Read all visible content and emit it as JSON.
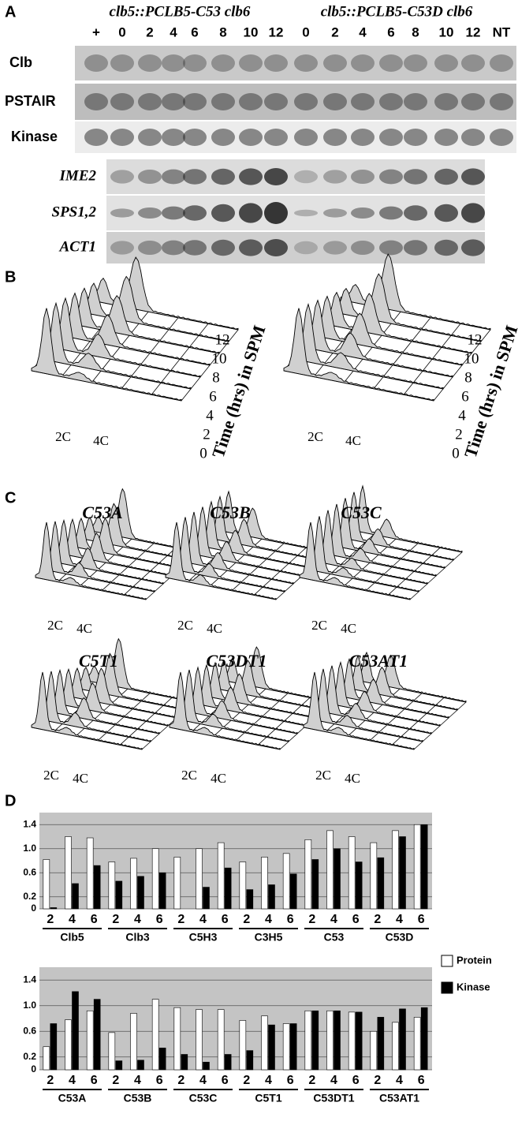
{
  "panel_a": {
    "label": "A",
    "strains": [
      "clb5::PCLB5-C53 clb6",
      "clb5::PCLB5-C53D clb6"
    ],
    "lanes": [
      "+",
      "0",
      "2",
      "4",
      "6",
      "8",
      "10",
      "12",
      "0",
      "2",
      "4",
      "6",
      "8",
      "10",
      "12",
      "NT"
    ],
    "rows": [
      "Clb",
      "PSTAIR",
      "Kinase",
      "IME2",
      "SPS1,2",
      "ACT1"
    ]
  },
  "panel_b": {
    "label": "B",
    "peaks": [
      "2C",
      "4C"
    ],
    "timepoints": [
      "0",
      "2",
      "4",
      "6",
      "8",
      "10",
      "12"
    ],
    "axis_title": "Time (hrs) in SPM"
  },
  "panel_c": {
    "label": "C",
    "strains": [
      "C53A",
      "C53B",
      "C53C",
      "C5T1",
      "C53DT1",
      "C53AT1"
    ]
  },
  "panel_d_label": "D",
  "chart_data": [
    {
      "type": "bar",
      "groups": [
        "Clb5",
        "Clb3",
        "C5H3",
        "C3H5",
        "C53",
        "C53D"
      ],
      "categories": [
        "2",
        "4",
        "6",
        "2",
        "4",
        "6",
        "2",
        "4",
        "6",
        "2",
        "4",
        "6",
        "2",
        "4",
        "6",
        "2",
        "4",
        "6"
      ],
      "series": [
        {
          "name": "Protein",
          "color": "#ffffff",
          "values": [
            0.82,
            1.2,
            1.18,
            0.78,
            0.84,
            1.0,
            0.86,
            1.0,
            1.1,
            0.78,
            0.86,
            0.92,
            1.15,
            1.3,
            1.2,
            1.1,
            1.3,
            1.4
          ]
        },
        {
          "name": "Kinase",
          "color": "#000000",
          "values": [
            0.02,
            0.42,
            0.72,
            0.46,
            0.54,
            0.6,
            0,
            0.36,
            0.68,
            0.32,
            0.4,
            0.58,
            0.82,
            1.0,
            0.78,
            0.85,
            1.2,
            1.4
          ]
        }
      ],
      "ylim": [
        0,
        1.6
      ],
      "yticks": [
        0,
        0.2,
        0.6,
        {
          "value": 1,
          "label": "1.0"
        },
        1.4
      ],
      "grid": true
    },
    {
      "type": "bar",
      "groups": [
        "C53A",
        "C53B",
        "C53C",
        "C5T1",
        "C53DT1",
        "C53AT1"
      ],
      "categories": [
        "2",
        "4",
        "6",
        "2",
        "4",
        "6",
        "2",
        "4",
        "6",
        "2",
        "4",
        "6",
        "2",
        "4",
        "6",
        "2",
        "4",
        "6"
      ],
      "series": [
        {
          "color": "#ffffff",
          "values": [
            0.36,
            0.78,
            0.92,
            0.58,
            0.88,
            1.1,
            0.97,
            0.94,
            0.94,
            0.77,
            0.84,
            0.72,
            0.92,
            0.92,
            0.9,
            0.6,
            0.74,
            0.82
          ]
        },
        {
          "color": "#000000",
          "values": [
            0.72,
            1.22,
            1.1,
            0.14,
            0.15,
            0.34,
            0.24,
            0.12,
            0.24,
            0.3,
            0.7,
            0.72,
            0.92,
            0.92,
            0.9,
            0.82,
            0.95,
            0.97
          ]
        }
      ],
      "ylim": [
        0,
        1.6
      ],
      "yticks": [
        0,
        0.2,
        0.6,
        {
          "value": 1,
          "label": "1.0"
        },
        1.4
      ],
      "grid": true
    }
  ]
}
